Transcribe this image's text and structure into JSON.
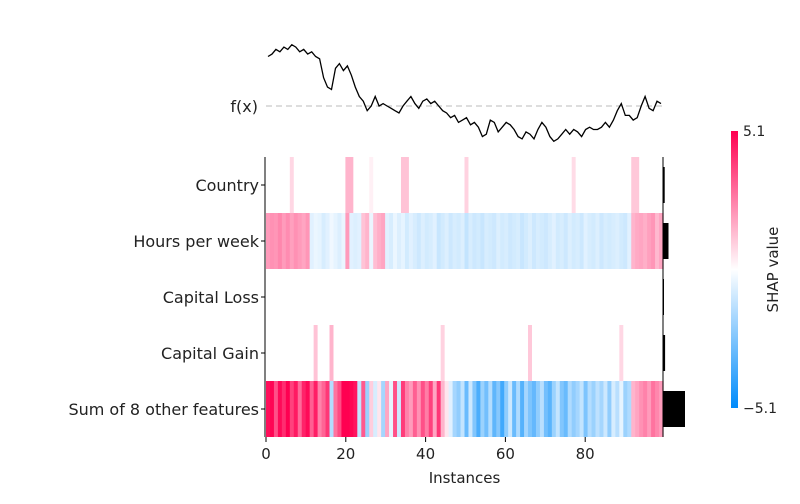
{
  "chart_data": {
    "type": "heatmap",
    "title": "",
    "fx_label": "f(x)",
    "xlabel": "Instances",
    "x_ticks": [
      0,
      20,
      40,
      60,
      80
    ],
    "n_instances": 100,
    "features": [
      "Country",
      "Hours per week",
      "Capital Loss",
      "Capital Gain",
      "Sum of 8 other features"
    ],
    "feature_importance": [
      0.4,
      1.3,
      0.15,
      0.5,
      5.2
    ],
    "colorbar": {
      "label": "SHAP value",
      "max_label": "5.1",
      "min_label": "−5.1",
      "vmin": -5.1,
      "vmax": 5.1
    },
    "colors": {
      "positive": "#ff0051",
      "negative": "#008bfb",
      "neutral": "#ffffff",
      "line": "#000000",
      "baseline": "#bbbbbb"
    },
    "fx_values": [
      0.83,
      0.84,
      0.86,
      0.85,
      0.87,
      0.86,
      0.88,
      0.87,
      0.85,
      0.86,
      0.84,
      0.85,
      0.83,
      0.82,
      0.74,
      0.7,
      0.69,
      0.78,
      0.8,
      0.77,
      0.79,
      0.75,
      0.7,
      0.66,
      0.64,
      0.6,
      0.62,
      0.66,
      0.62,
      0.63,
      0.62,
      0.61,
      0.6,
      0.59,
      0.62,
      0.64,
      0.66,
      0.63,
      0.61,
      0.64,
      0.65,
      0.63,
      0.64,
      0.62,
      0.6,
      0.59,
      0.57,
      0.58,
      0.55,
      0.56,
      0.57,
      0.54,
      0.55,
      0.53,
      0.49,
      0.5,
      0.56,
      0.55,
      0.51,
      0.53,
      0.55,
      0.54,
      0.52,
      0.49,
      0.48,
      0.51,
      0.5,
      0.48,
      0.52,
      0.55,
      0.53,
      0.49,
      0.47,
      0.48,
      0.5,
      0.52,
      0.5,
      0.52,
      0.51,
      0.49,
      0.52,
      0.53,
      0.52,
      0.52,
      0.53,
      0.55,
      0.53,
      0.56,
      0.6,
      0.63,
      0.58,
      0.58,
      0.56,
      0.57,
      0.62,
      0.66,
      0.61,
      0.6,
      0.64,
      0.63
    ],
    "fx_range": [
      0.45,
      0.9
    ],
    "fx_baseline": 0.62,
    "shap_rows": {
      "Country": [
        0,
        0,
        0,
        0,
        0,
        0,
        0.8,
        0,
        0,
        0,
        0,
        0,
        0,
        0,
        0,
        0,
        0,
        0,
        0,
        0,
        1.5,
        1.5,
        0,
        0,
        0,
        0,
        0.3,
        0,
        0,
        0,
        0,
        0,
        0,
        0,
        1.2,
        1.2,
        0,
        0,
        0,
        0,
        0,
        0,
        0,
        0,
        0,
        0,
        0,
        0,
        0,
        0,
        0.9,
        0,
        0,
        0,
        0,
        0,
        0,
        0,
        0,
        0,
        0,
        0,
        0,
        0,
        0,
        0,
        0,
        0,
        0,
        0,
        0,
        0,
        0,
        0,
        0,
        0,
        0,
        0.7,
        0,
        0,
        0,
        0,
        0,
        0,
        0,
        0,
        0,
        0,
        0,
        0,
        0,
        0,
        1.1,
        1.1,
        0,
        0,
        0,
        0,
        0,
        0
      ],
      "Hours per week": [
        2.0,
        2.2,
        2.1,
        2.4,
        2.0,
        2.3,
        1.9,
        2.2,
        2.0,
        1.8,
        2.1,
        -0.6,
        -0.4,
        -0.5,
        -0.8,
        -0.6,
        -0.3,
        -0.5,
        -0.7,
        -0.4,
        2.0,
        -0.6,
        -0.7,
        -0.6,
        1.2,
        1.5,
        -0.4,
        1.3,
        1.6,
        1.8,
        -0.6,
        -0.8,
        -0.4,
        -0.7,
        -0.5,
        -0.9,
        -0.6,
        -0.8,
        -1.0,
        -0.7,
        -0.9,
        -0.8,
        -0.6,
        -1.1,
        -0.9,
        -0.7,
        -1.0,
        -0.8,
        -0.9,
        -0.7,
        -1.2,
        -0.8,
        -1.0,
        -0.9,
        -1.1,
        -0.8,
        -0.9,
        -1.0,
        -0.7,
        -0.9,
        -0.8,
        -1.0,
        -0.9,
        -0.8,
        -1.1,
        -0.9,
        -0.7,
        -1.0,
        -0.8,
        -0.9,
        -1.0,
        -0.8,
        -0.6,
        -0.9,
        -0.8,
        -1.0,
        -0.7,
        -0.9,
        -0.8,
        -1.0,
        -0.6,
        -0.8,
        -0.9,
        -0.7,
        -1.0,
        -0.8,
        -0.9,
        -0.8,
        -0.7,
        -0.9,
        -1.0,
        -0.6,
        1.5,
        1.7,
        1.8,
        1.6,
        1.9,
        2.1,
        1.4,
        1.8
      ],
      "Capital Loss": [
        0,
        0,
        0,
        0,
        0,
        0,
        0,
        0,
        0,
        0,
        0,
        0,
        0,
        0,
        0,
        0,
        0,
        0,
        0,
        0,
        0,
        0,
        0,
        0,
        0,
        0,
        0,
        0,
        0,
        0,
        0,
        0,
        0,
        0,
        0,
        0,
        0,
        0,
        0,
        0,
        0,
        0,
        0,
        0,
        0,
        0,
        0,
        0,
        0,
        0,
        0,
        0,
        0,
        0,
        0,
        0,
        0,
        0,
        0,
        0,
        0,
        0,
        0,
        0,
        0,
        0,
        0,
        0,
        0,
        0,
        0,
        0,
        0,
        0,
        0,
        0,
        0,
        0,
        0,
        0,
        0,
        0,
        0,
        0,
        0,
        0,
        0,
        0,
        0,
        0,
        0,
        0,
        0,
        0,
        0,
        0,
        0,
        0,
        0,
        0
      ],
      "Capital Gain": [
        0,
        0,
        0,
        0,
        0,
        0,
        0,
        0,
        0,
        0,
        0,
        0,
        1.2,
        0,
        0,
        0,
        1.5,
        0,
        0,
        0,
        0,
        0,
        0,
        0,
        0,
        0,
        0,
        0,
        0,
        0,
        0,
        0,
        0,
        0,
        0,
        0,
        0,
        0,
        0,
        0,
        0,
        0,
        0,
        0,
        0.9,
        0,
        0,
        0,
        0,
        0,
        0,
        0,
        0,
        0,
        0,
        0,
        0,
        0,
        0,
        0,
        0,
        0,
        0,
        0,
        0,
        0,
        1.1,
        0,
        0,
        0,
        0,
        0,
        0,
        0,
        0,
        0,
        0,
        0,
        0,
        0,
        0,
        0,
        0,
        0,
        0,
        0,
        0,
        0,
        0,
        0.8,
        0,
        0,
        0,
        0,
        0,
        0,
        0,
        0,
        0,
        0
      ],
      "Sum of 8 other features": [
        4.8,
        5.0,
        3.5,
        4.9,
        4.2,
        5.1,
        3.8,
        4.6,
        3.0,
        4.4,
        4.9,
        3.2,
        4.5,
        2.5,
        3.1,
        4.0,
        -1.5,
        2.8,
        3.6,
        5.1,
        5.1,
        5.0,
        4.7,
        -1.2,
        3.3,
        -2.0,
        1.0,
        -0.8,
        0.5,
        -1.8,
        1.8,
        -0.5,
        3.5,
        -1.0,
        3.9,
        2.5,
        2.0,
        3.2,
        2.2,
        3.5,
        2.6,
        3.8,
        1.8,
        4.0,
        1.5,
        0.5,
        -0.6,
        -1.8,
        -2.2,
        -1.2,
        -3.0,
        -1.0,
        -2.5,
        -3.6,
        -2.0,
        -2.8,
        -1.5,
        -3.2,
        -2.4,
        -3.8,
        -2.2,
        -1.0,
        -3.0,
        -1.6,
        -3.4,
        -1.8,
        -2.6,
        -3.1,
        -2.2,
        -1.4,
        -2.8,
        -3.3,
        -2.0,
        -1.2,
        -2.5,
        -3.0,
        -1.6,
        -2.2,
        -1.8,
        -1.2,
        -2.6,
        -1.5,
        -2.0,
        -1.3,
        -1.8,
        -1.0,
        -2.2,
        -0.8,
        -1.4,
        -0.5,
        -2.0,
        -1.6,
        1.5,
        1.8,
        2.2,
        2.5,
        2.0,
        2.8,
        2.4,
        2.0
      ]
    }
  }
}
